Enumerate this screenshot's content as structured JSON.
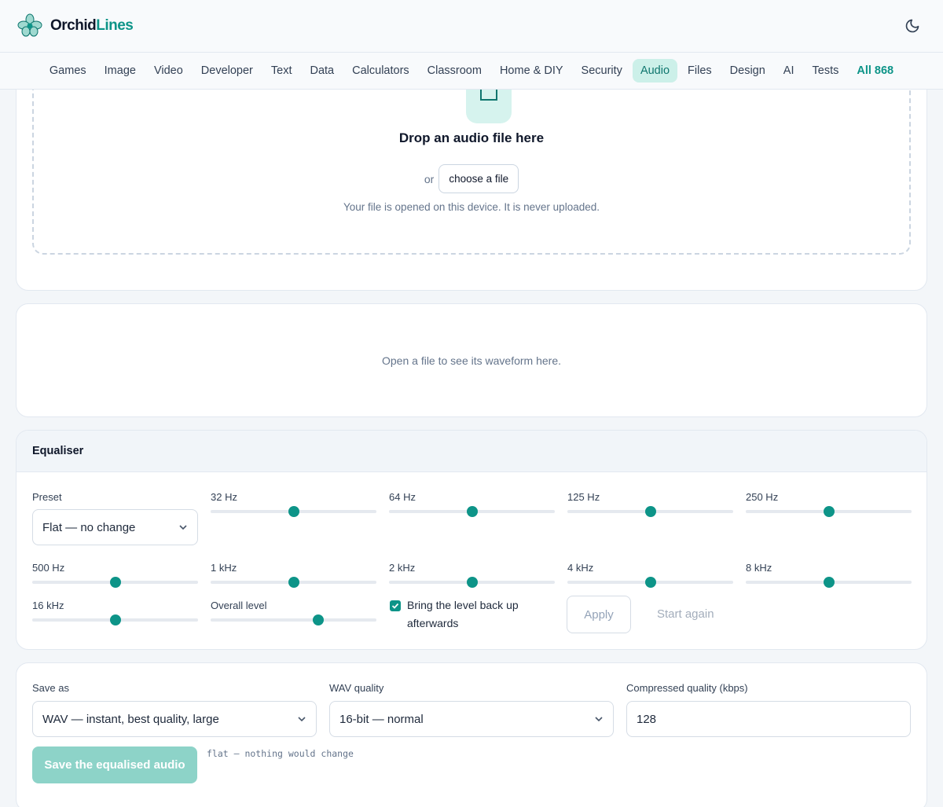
{
  "header": {
    "brand_part1": "Orchid",
    "brand_part2": "Lines",
    "logo_icon": "orchid-icon",
    "theme_icon": "moon-icon"
  },
  "nav": {
    "items": [
      {
        "label": "Games"
      },
      {
        "label": "Image"
      },
      {
        "label": "Video"
      },
      {
        "label": "Developer"
      },
      {
        "label": "Text"
      },
      {
        "label": "Data"
      },
      {
        "label": "Calculators"
      },
      {
        "label": "Classroom"
      },
      {
        "label": "Home & DIY"
      },
      {
        "label": "Security"
      },
      {
        "label": "Audio",
        "active": true
      },
      {
        "label": "Files"
      },
      {
        "label": "Design"
      },
      {
        "label": "AI"
      },
      {
        "label": "Tests"
      }
    ],
    "all_label": "All 868"
  },
  "dropzone": {
    "title": "Drop an audio file here",
    "or": "or",
    "choose_button": "choose a file",
    "note": "Your file is opened on this device. It is never uploaded."
  },
  "waveform": {
    "empty_text": "Open a file to see its waveform here."
  },
  "equaliser": {
    "title": "Equaliser",
    "preset_label": "Preset",
    "preset_value": "Flat — no change",
    "bands": [
      {
        "label": "32 Hz",
        "level": 0.5
      },
      {
        "label": "64 Hz",
        "level": 0.5
      },
      {
        "label": "125 Hz",
        "level": 0.5
      },
      {
        "label": "250 Hz",
        "level": 0.5
      },
      {
        "label": "500 Hz",
        "level": 0.5
      },
      {
        "label": "1 kHz",
        "level": 0.5
      },
      {
        "label": "2 kHz",
        "level": 0.5
      },
      {
        "label": "4 kHz",
        "level": 0.5
      },
      {
        "label": "8 kHz",
        "level": 0.5
      },
      {
        "label": "16 kHz",
        "level": 0.5
      }
    ],
    "overall_label": "Overall level",
    "overall_level": 0.65,
    "normalize_label": "Bring the level back up afterwards",
    "normalize_checked": true,
    "apply_button": "Apply",
    "reset_button": "Start again"
  },
  "save": {
    "format_label": "Save as",
    "format_value": "WAV — instant, best quality, large",
    "wav_label": "WAV quality",
    "wav_value": "16-bit — normal",
    "compressed_label": "Compressed quality (kbps)",
    "compressed_value": "128",
    "save_button": "Save the equalised audio",
    "status": "flat — nothing would change"
  },
  "colors": {
    "accent": "#0d9488",
    "accent_light": "#ccf0e9",
    "save_disabled": "#8dd3c8"
  }
}
